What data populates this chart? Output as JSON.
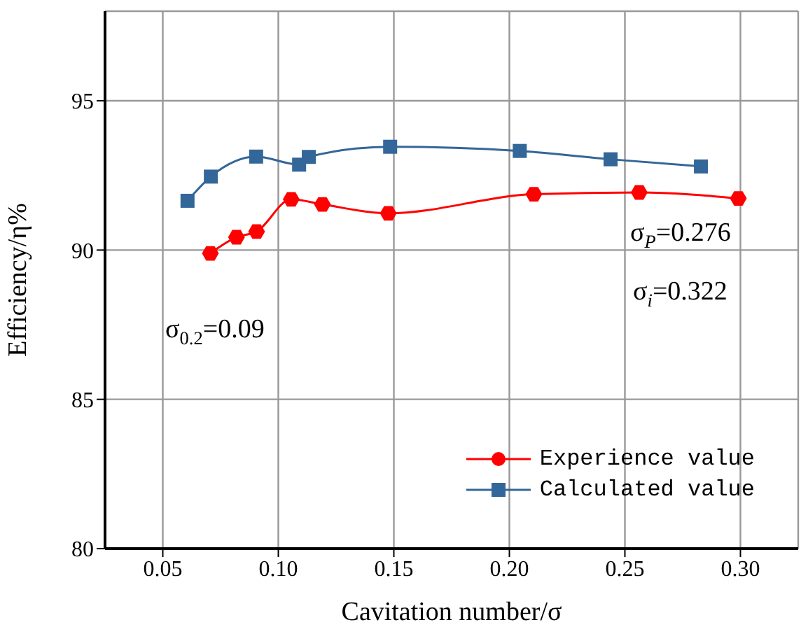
{
  "chart_data": {
    "type": "line",
    "xlabel": "Cavitation number/σ",
    "ylabel": "Efficiency/η%",
    "xlim": [
      0.025,
      0.325
    ],
    "xticks": [
      {
        "value": 0.05,
        "label": "0.05"
      },
      {
        "value": 0.1,
        "label": "0.10"
      },
      {
        "value": 0.15,
        "label": "0.15"
      },
      {
        "value": 0.2,
        "label": "0.20"
      },
      {
        "value": 0.25,
        "label": "0.25"
      },
      {
        "value": 0.3,
        "label": "0.30"
      }
    ],
    "ylim": [
      80,
      98
    ],
    "yticks": [
      80,
      85,
      90,
      95
    ],
    "grid": true,
    "legend": "bottom right",
    "series": [
      {
        "name": "Experience value",
        "color": "#ff0000",
        "marker": "circle",
        "x": [
          0.0706,
          0.0819,
          0.0906,
          0.1056,
          0.1191,
          0.1476,
          0.2106,
          0.2562,
          0.2991
        ],
        "values": [
          89.89,
          90.43,
          90.62,
          91.7,
          91.53,
          91.23,
          91.87,
          91.93,
          91.73
        ]
      },
      {
        "name": "Calculated value",
        "color": "#336699",
        "marker": "square",
        "x": [
          0.0607,
          0.0708,
          0.0904,
          0.109,
          0.1132,
          0.1484,
          0.2045,
          0.2438,
          0.2829
        ],
        "values": [
          91.65,
          92.46,
          93.13,
          92.86,
          93.12,
          93.46,
          93.32,
          93.04,
          92.8
        ]
      }
    ],
    "annotations": [
      "σ$_{P}$=0.276",
      "σ$_{i}$=0.322",
      "σ$_{0.2}$=0.09"
    ]
  }
}
